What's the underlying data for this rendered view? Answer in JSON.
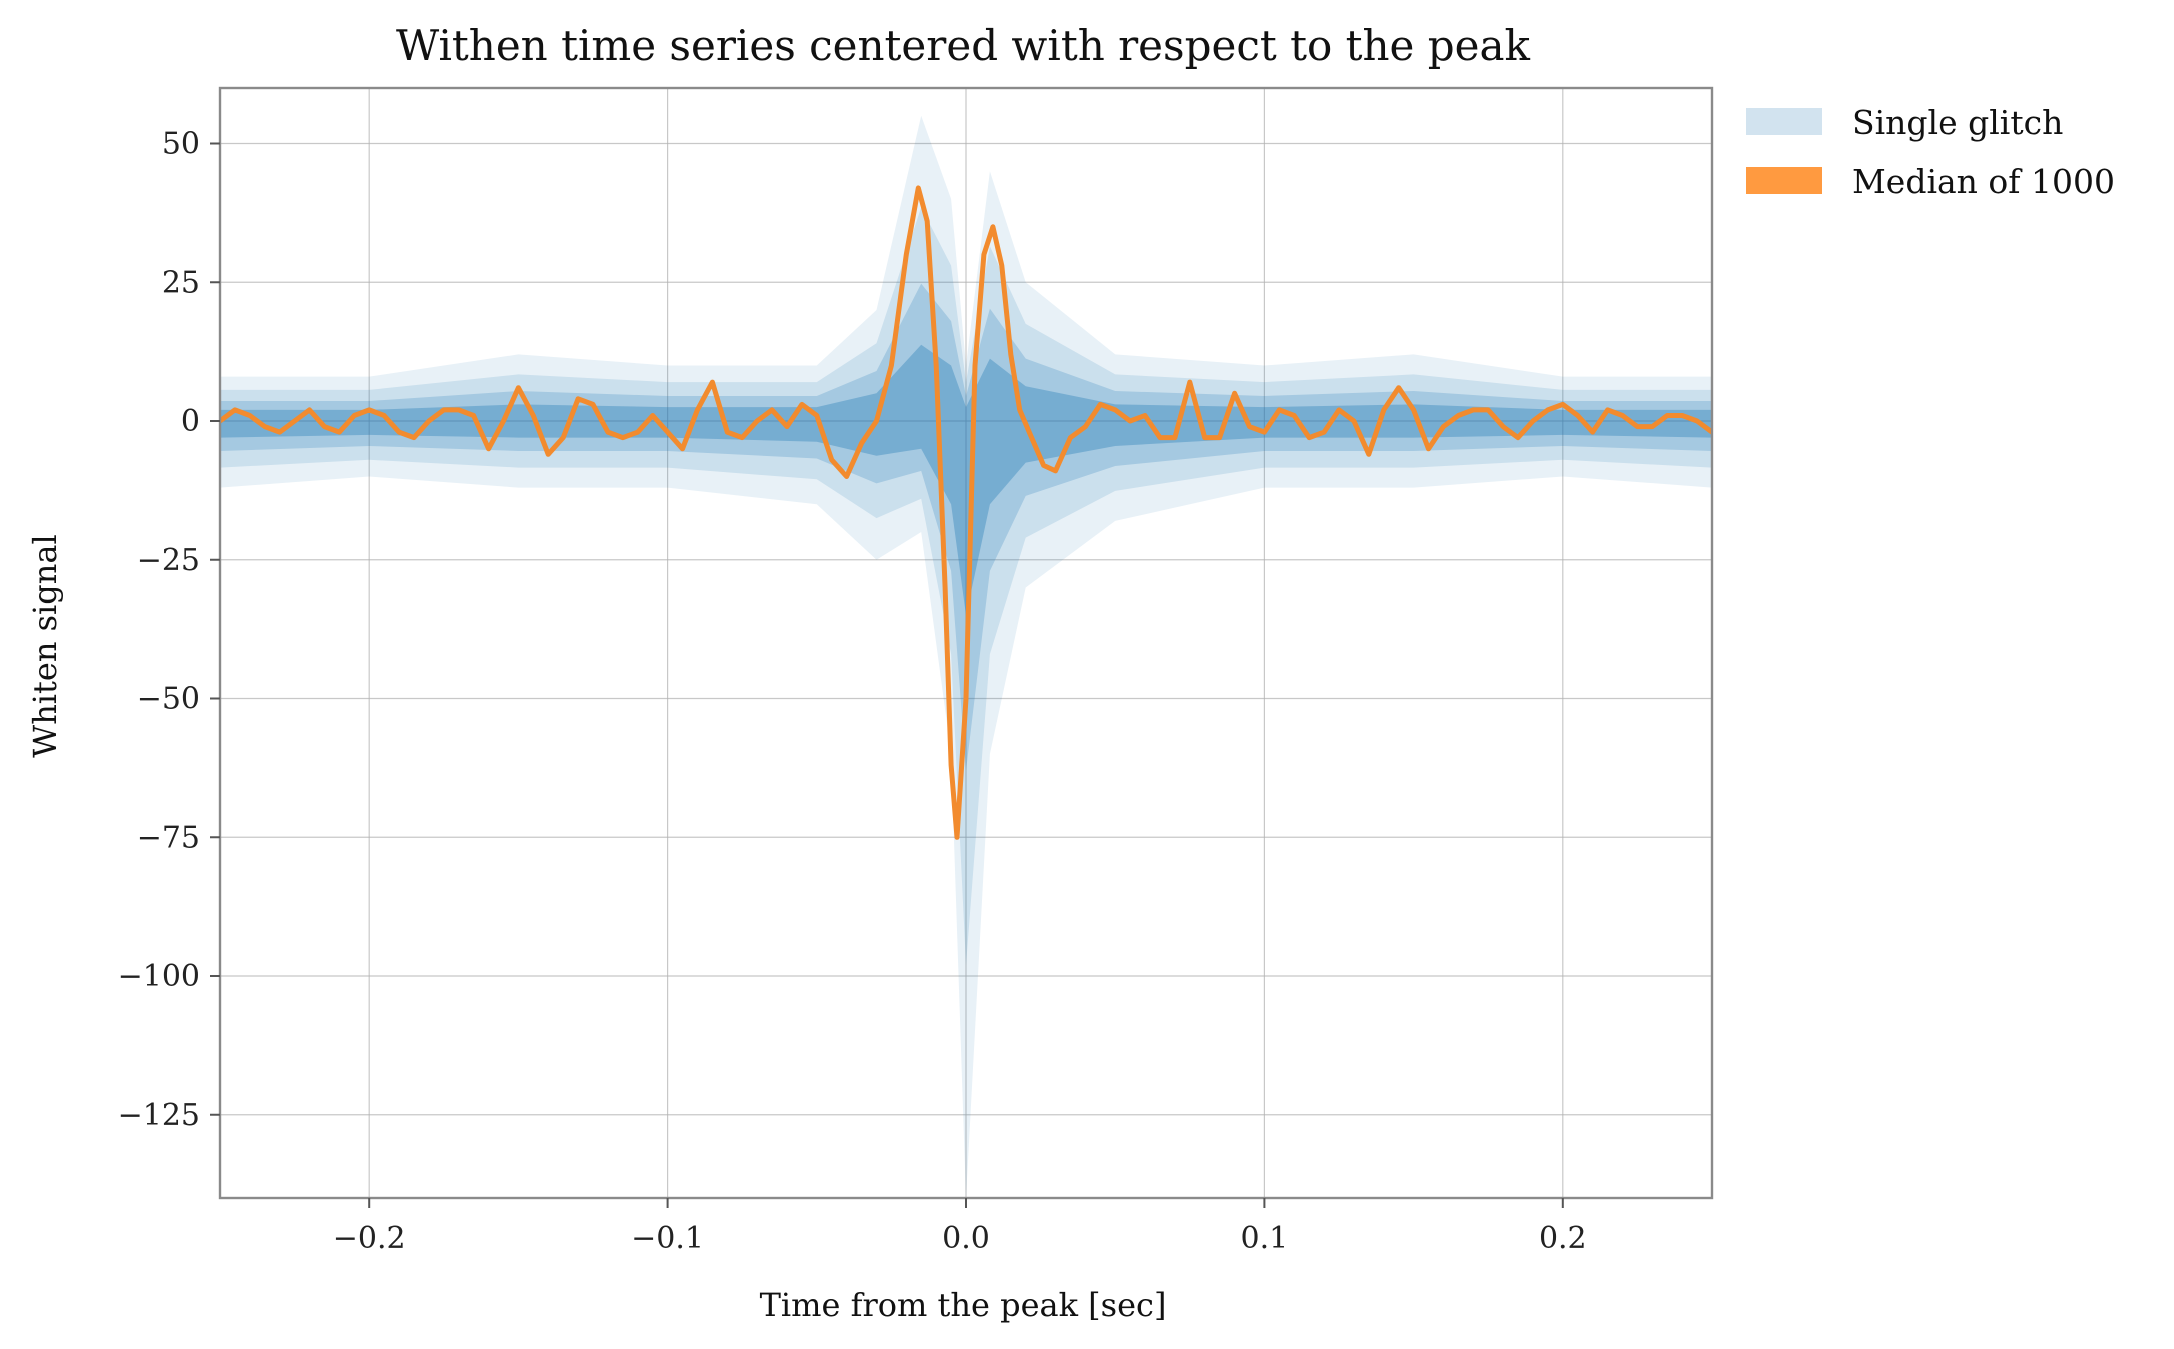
{
  "chart_data": {
    "type": "line",
    "title": "Withen time series centered with respect to the peak",
    "xlabel": "Time from the peak [sec]",
    "ylabel": "Whiten signal",
    "xlim": [
      -0.25,
      0.25
    ],
    "ylim": [
      -140,
      60
    ],
    "xticks": [
      -0.2,
      -0.1,
      0.0,
      0.1,
      0.2
    ],
    "xtick_labels": [
      "−0.2",
      "−0.1",
      "0.0",
      "0.1",
      "0.2"
    ],
    "yticks": [
      50,
      25,
      0,
      -25,
      -50,
      -75,
      -100,
      -125
    ],
    "ytick_labels": [
      "50",
      "25",
      "0",
      "−25",
      "−50",
      "−75",
      "−100",
      "−125"
    ],
    "grid": true,
    "legend_placement": "outside upper right",
    "series": [
      {
        "name": "Single glitch",
        "color": "#1f77b4",
        "legend_color": "#d2e3ef",
        "kind": "band",
        "note_values": "envelope of individual glitch traces",
        "x": [
          -0.25,
          -0.2,
          -0.15,
          -0.1,
          -0.05,
          -0.03,
          -0.015,
          -0.005,
          0.0,
          0.008,
          0.02,
          0.05,
          0.1,
          0.15,
          0.2,
          0.25
        ],
        "upper": [
          8,
          8,
          12,
          10,
          10,
          20,
          55,
          40,
          10,
          45,
          25,
          12,
          10,
          12,
          8,
          8
        ],
        "lower": [
          -12,
          -10,
          -12,
          -12,
          -15,
          -25,
          -20,
          -60,
          -140,
          -60,
          -30,
          -18,
          -12,
          -12,
          -10,
          -12
        ]
      },
      {
        "name": "Median of 1000",
        "color": "#f28b2e",
        "legend_color": "#ff9a40",
        "kind": "line",
        "x": [
          -0.25,
          -0.245,
          -0.24,
          -0.235,
          -0.23,
          -0.225,
          -0.22,
          -0.215,
          -0.21,
          -0.205,
          -0.2,
          -0.195,
          -0.19,
          -0.185,
          -0.18,
          -0.175,
          -0.17,
          -0.165,
          -0.16,
          -0.155,
          -0.15,
          -0.145,
          -0.14,
          -0.135,
          -0.13,
          -0.125,
          -0.12,
          -0.115,
          -0.11,
          -0.105,
          -0.1,
          -0.095,
          -0.09,
          -0.085,
          -0.08,
          -0.075,
          -0.07,
          -0.065,
          -0.06,
          -0.055,
          -0.05,
          -0.045,
          -0.04,
          -0.035,
          -0.03,
          -0.025,
          -0.02,
          -0.016,
          -0.013,
          -0.01,
          -0.007,
          -0.005,
          -0.003,
          0.0,
          0.003,
          0.006,
          0.009,
          0.012,
          0.015,
          0.018,
          0.022,
          0.026,
          0.03,
          0.035,
          0.04,
          0.045,
          0.05,
          0.055,
          0.06,
          0.065,
          0.07,
          0.075,
          0.08,
          0.085,
          0.09,
          0.095,
          0.1,
          0.105,
          0.11,
          0.115,
          0.12,
          0.125,
          0.13,
          0.135,
          0.14,
          0.145,
          0.15,
          0.155,
          0.16,
          0.165,
          0.17,
          0.175,
          0.18,
          0.185,
          0.19,
          0.195,
          0.2,
          0.205,
          0.21,
          0.215,
          0.22,
          0.225,
          0.23,
          0.235,
          0.24,
          0.245,
          0.25
        ],
        "y": [
          0,
          2,
          1,
          -1,
          -2,
          0,
          2,
          -1,
          -2,
          1,
          2,
          1,
          -2,
          -3,
          0,
          2,
          2,
          1,
          -5,
          0,
          6,
          1,
          -6,
          -3,
          4,
          3,
          -2,
          -3,
          -2,
          1,
          -2,
          -5,
          2,
          7,
          -2,
          -3,
          0,
          2,
          -1,
          3,
          1,
          -7,
          -10,
          -4,
          0,
          10,
          30,
          42,
          36,
          10,
          -30,
          -62,
          -75,
          -50,
          10,
          30,
          35,
          28,
          12,
          2,
          -3,
          -8,
          -9,
          -3,
          -1,
          3,
          2,
          0,
          1,
          -3,
          -3,
          7,
          -3,
          -3,
          5,
          -1,
          -2,
          2,
          1,
          -3,
          -2,
          2,
          0,
          -6,
          2,
          6,
          2,
          -5,
          -1,
          1,
          2,
          2,
          -1,
          -3,
          0,
          2,
          3,
          1,
          -2,
          2,
          1,
          -1,
          -1,
          1,
          1,
          0,
          -2
        ]
      }
    ]
  }
}
